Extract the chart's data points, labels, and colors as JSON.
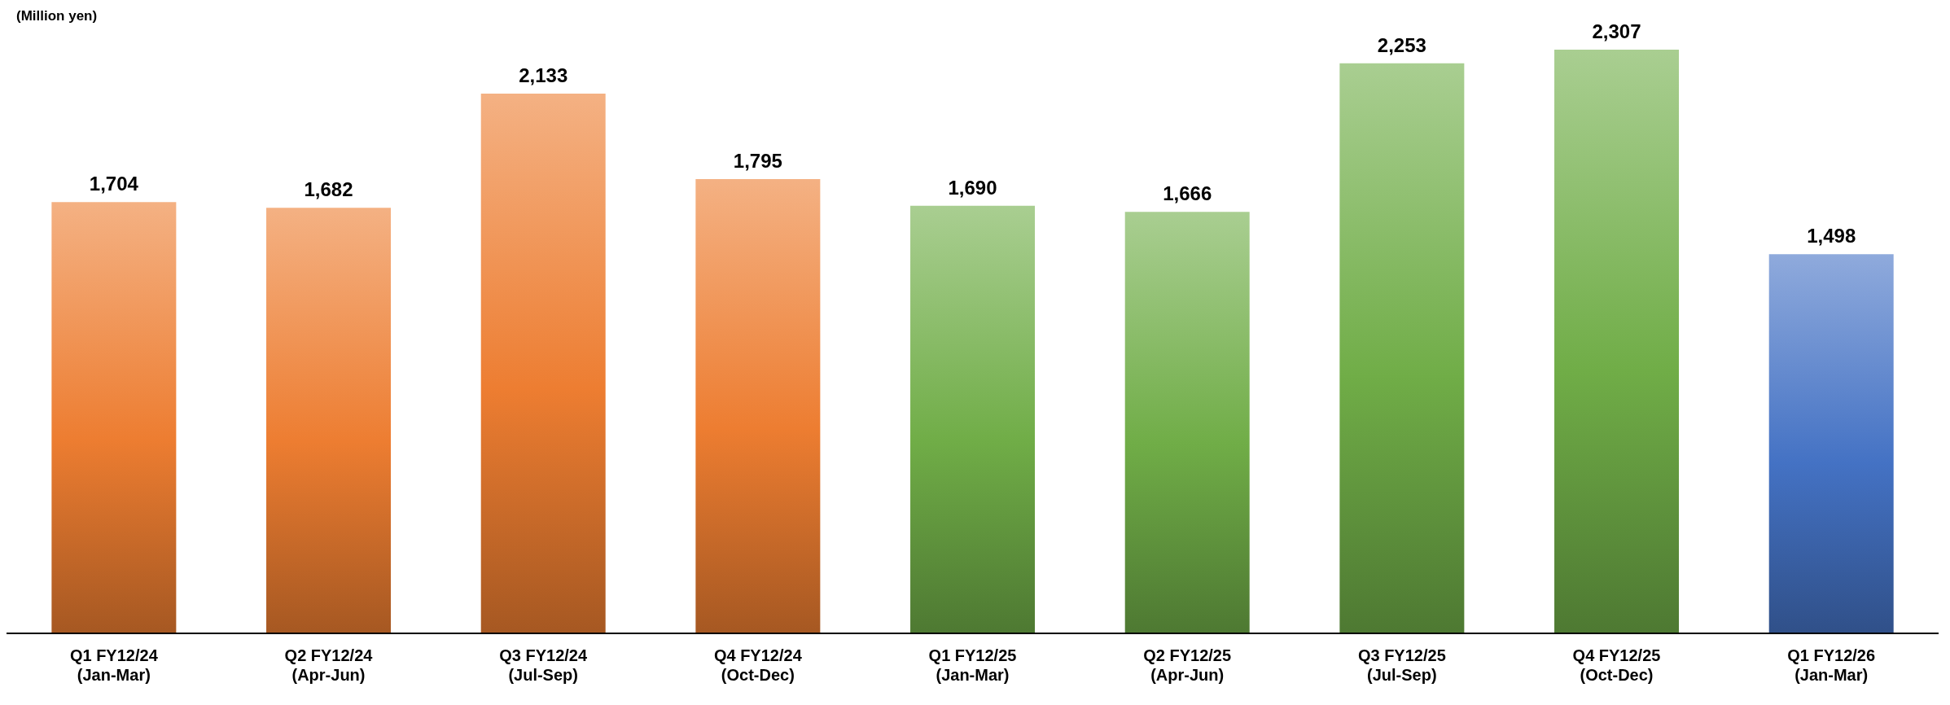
{
  "chart_data": {
    "type": "bar",
    "ylabel": "(Million yen)",
    "categories": [
      "Q1 FY12/24\n(Jan-Mar)",
      "Q2 FY12/24\n(Apr-Jun)",
      "Q3 FY12/24\n(Jul-Sep)",
      "Q4 FY12/24\n(Oct-Dec)",
      "Q1 FY12/25\n(Jan-Mar)",
      "Q2 FY12/25\n(Apr-Jun)",
      "Q3 FY12/25\n(Jul-Sep)",
      "Q4 FY12/25\n(Oct-Dec)",
      "Q1 FY12/26\n(Jan-Mar)"
    ],
    "values": [
      1704,
      1682,
      2133,
      1795,
      1690,
      1666,
      2253,
      2307,
      1498
    ],
    "colors": [
      "#ed7d31",
      "#ed7d31",
      "#ed7d31",
      "#ed7d31",
      "#70ad47",
      "#70ad47",
      "#70ad47",
      "#70ad47",
      "#4472c4"
    ],
    "value_labels": [
      "1,704",
      "1,682",
      "2,133",
      "1,795",
      "1,690",
      "1,666",
      "2,253",
      "2,307",
      "1,498"
    ]
  }
}
